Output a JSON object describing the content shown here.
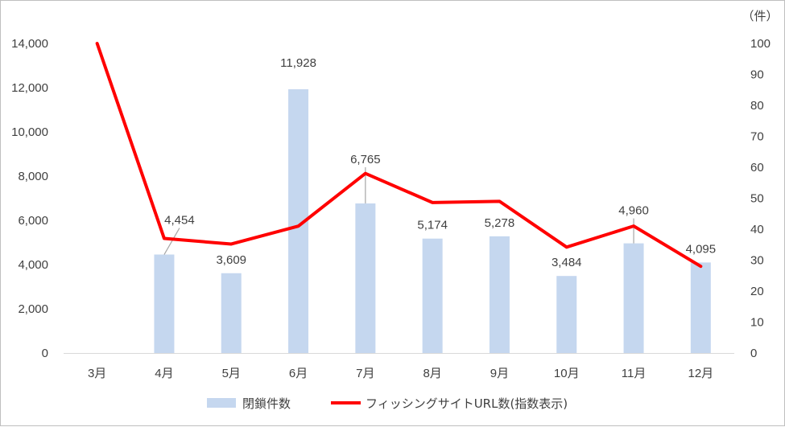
{
  "chart_data": {
    "type": "bar+line",
    "categories": [
      "3月",
      "4月",
      "5月",
      "6月",
      "7月",
      "8月",
      "9月",
      "10月",
      "11月",
      "12月"
    ],
    "series": [
      {
        "name": "閉鎖件数",
        "type": "bar",
        "axis": "left",
        "values": [
          null,
          4454,
          3609,
          11928,
          6765,
          5174,
          5278,
          3484,
          4960,
          4095
        ],
        "labels": [
          "",
          "4,454",
          "3,609",
          "11,928",
          "6,765",
          "5,174",
          "5,278",
          "3,484",
          "4,960",
          "4,095"
        ],
        "color": "#c5d7ef"
      },
      {
        "name": "フィッシングサイトURL数(指数表示)",
        "type": "line",
        "axis": "right",
        "values": [
          100,
          37,
          35.2,
          41,
          58,
          48.6,
          49,
          34.2,
          41,
          28
        ],
        "color": "#ff0000"
      }
    ],
    "y_left": {
      "ylim": [
        0,
        14000
      ],
      "ticks": [
        "0",
        "2,000",
        "4,000",
        "6,000",
        "8,000",
        "10,000",
        "12,000",
        "14,000"
      ]
    },
    "y_right": {
      "unit": "（件）",
      "ylim": [
        0,
        100
      ],
      "ticks": [
        "0",
        "10",
        "20",
        "30",
        "40",
        "50",
        "60",
        "70",
        "80",
        "90",
        "100"
      ]
    },
    "grid": false,
    "legend_position": "bottom"
  }
}
